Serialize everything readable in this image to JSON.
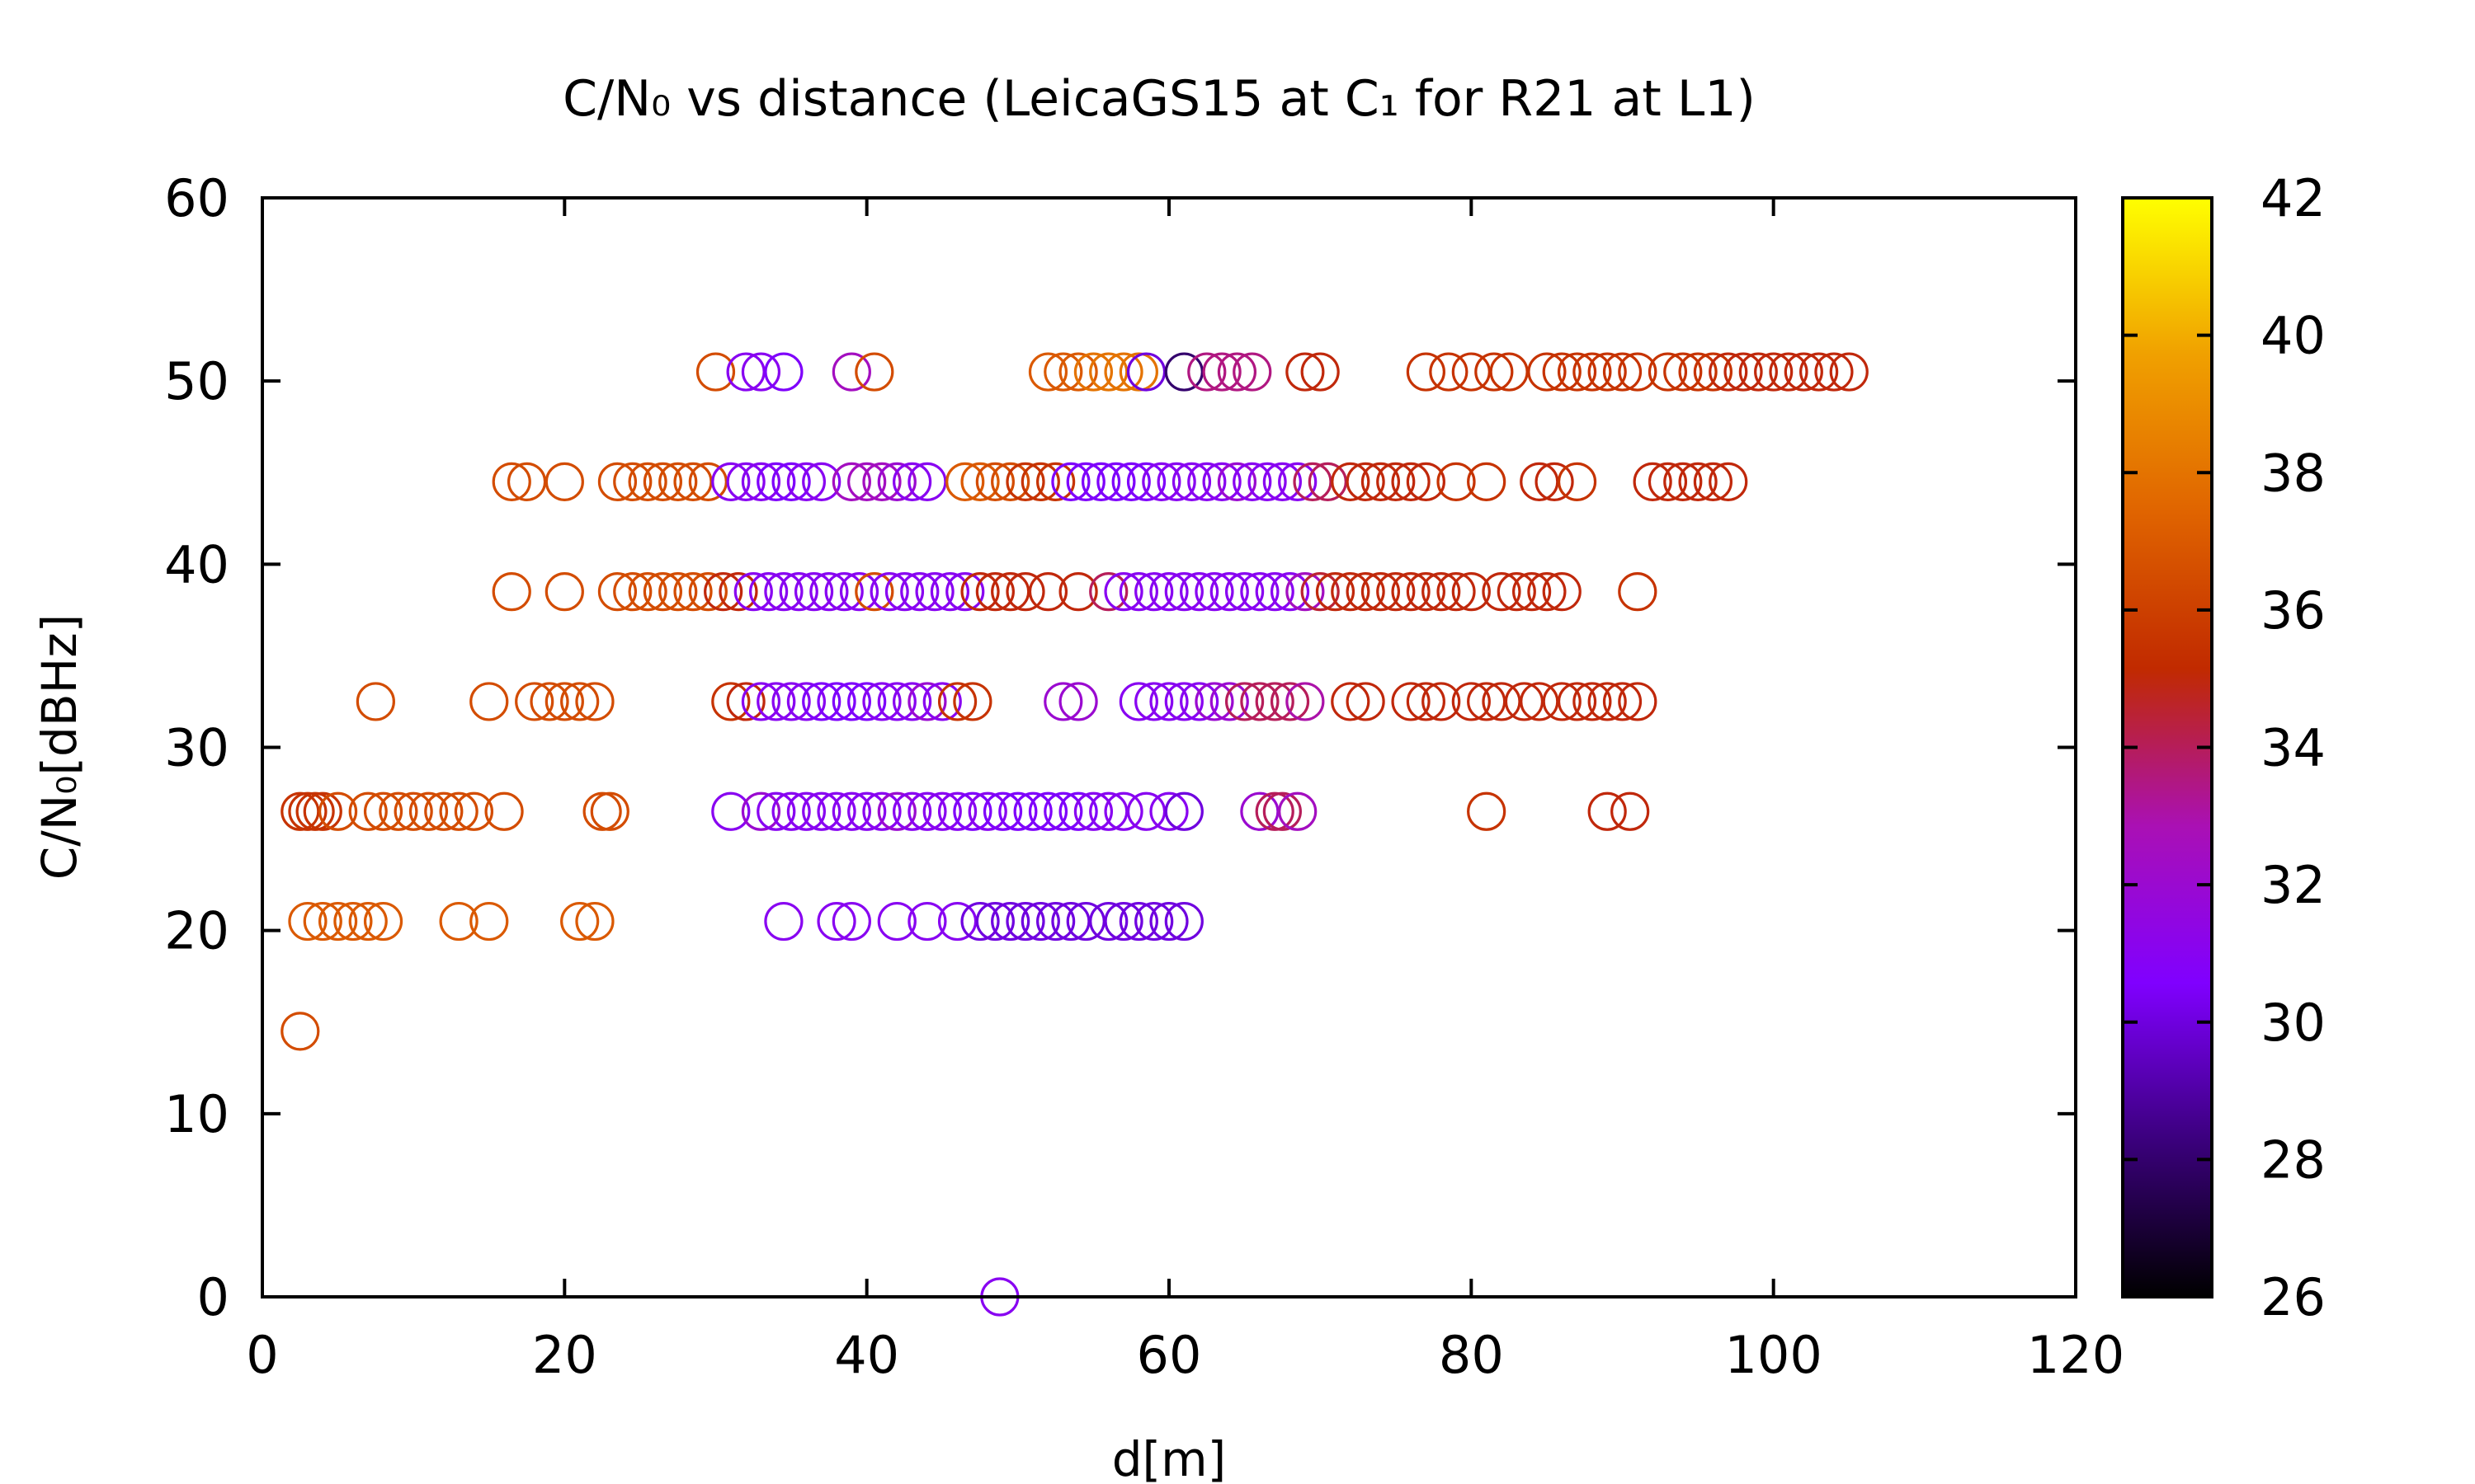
{
  "chart_data": {
    "type": "scatter",
    "title": "C/N₀ vs distance (LeicaGS15 at C₁ for R21 at L1)",
    "xlabel": "d[m]",
    "ylabel": "C/N₀[dBHz]",
    "xlim": [
      0,
      120
    ],
    "ylim": [
      0,
      60
    ],
    "xticks": [
      "0",
      "20",
      "40",
      "60",
      "80",
      "100",
      "120"
    ],
    "yticks": [
      "0",
      "10",
      "20",
      "30",
      "40",
      "50",
      "60"
    ],
    "grid": false,
    "colorbar": {
      "range": [
        26,
        42
      ],
      "ticks": [
        "26",
        "28",
        "30",
        "32",
        "34",
        "36",
        "38",
        "40",
        "42"
      ],
      "palette": [
        "#000000",
        "#3b007d",
        "#8000ff",
        "#aa10b4",
        "#c12a00",
        "#e06400",
        "#f0a000",
        "#ffff00"
      ]
    },
    "points": [
      [
        2.5,
        14.5,
        36.5
      ],
      [
        48.8,
        0,
        31.0
      ],
      [
        3.0,
        20.5,
        37.0
      ],
      [
        4.0,
        20.5,
        37.0
      ],
      [
        5.0,
        20.5,
        37.0
      ],
      [
        6.0,
        20.5,
        37.0
      ],
      [
        7.0,
        20.5,
        37.0
      ],
      [
        8.0,
        20.5,
        37.0
      ],
      [
        13.0,
        20.5,
        37.0
      ],
      [
        15.0,
        20.5,
        37.0
      ],
      [
        21.0,
        20.5,
        37.0
      ],
      [
        22.0,
        20.5,
        37.0
      ],
      [
        34.5,
        20.5,
        31.0
      ],
      [
        38.0,
        20.5,
        31.0
      ],
      [
        39.0,
        20.5,
        31.0
      ],
      [
        42.0,
        20.5,
        31.0
      ],
      [
        44.0,
        20.5,
        31.0
      ],
      [
        46.0,
        20.5,
        31.0
      ],
      [
        47.5,
        20.5,
        30.0
      ],
      [
        48.5,
        20.5,
        30.0
      ],
      [
        49.5,
        20.5,
        30.0
      ],
      [
        50.5,
        20.5,
        30.0
      ],
      [
        51.5,
        20.5,
        30.0
      ],
      [
        52.5,
        20.5,
        30.0
      ],
      [
        53.5,
        20.5,
        30.0
      ],
      [
        54.5,
        20.5,
        30.0
      ],
      [
        56.0,
        20.5,
        30.0
      ],
      [
        57.0,
        20.5,
        30.0
      ],
      [
        58.0,
        20.5,
        30.0
      ],
      [
        59.0,
        20.5,
        30.0
      ],
      [
        60.0,
        20.5,
        30.0
      ],
      [
        61.0,
        20.5,
        30.0
      ],
      [
        2.5,
        26.5,
        35.5
      ],
      [
        3.0,
        26.5,
        35.5
      ],
      [
        3.5,
        26.5,
        35.5
      ],
      [
        4.0,
        26.5,
        35.5
      ],
      [
        5.0,
        26.5,
        36.5
      ],
      [
        7.0,
        26.5,
        36.5
      ],
      [
        8.0,
        26.5,
        36.5
      ],
      [
        9.0,
        26.5,
        36.5
      ],
      [
        10.0,
        26.5,
        36.5
      ],
      [
        11.0,
        26.5,
        36.5
      ],
      [
        12.0,
        26.5,
        36.5
      ],
      [
        13.0,
        26.5,
        36.5
      ],
      [
        14.0,
        26.5,
        36.5
      ],
      [
        16.0,
        26.5,
        36.5
      ],
      [
        22.5,
        26.5,
        36.5
      ],
      [
        23.0,
        26.5,
        36.5
      ],
      [
        31.0,
        26.5,
        31.0
      ],
      [
        33.0,
        26.5,
        32.0
      ],
      [
        34.0,
        26.5,
        31.0
      ],
      [
        35.0,
        26.5,
        31.0
      ],
      [
        36.0,
        26.5,
        31.0
      ],
      [
        37.0,
        26.5,
        31.0
      ],
      [
        38.0,
        26.5,
        31.0
      ],
      [
        39.0,
        26.5,
        31.0
      ],
      [
        40.0,
        26.5,
        31.0
      ],
      [
        41.0,
        26.5,
        31.0
      ],
      [
        42.0,
        26.5,
        32.0
      ],
      [
        43.0,
        26.5,
        31.0
      ],
      [
        44.0,
        26.5,
        31.0
      ],
      [
        45.0,
        26.5,
        31.0
      ],
      [
        46.0,
        26.5,
        31.0
      ],
      [
        47.0,
        26.5,
        30.5
      ],
      [
        48.0,
        26.5,
        31.0
      ],
      [
        49.0,
        26.5,
        30.5
      ],
      [
        50.0,
        26.5,
        30.5
      ],
      [
        51.0,
        26.5,
        30.5
      ],
      [
        52.0,
        26.5,
        30.5
      ],
      [
        53.0,
        26.5,
        30.5
      ],
      [
        54.0,
        26.5,
        30.5
      ],
      [
        55.0,
        26.5,
        31.0
      ],
      [
        56.0,
        26.5,
        31.0
      ],
      [
        57.0,
        26.5,
        31.0
      ],
      [
        58.5,
        26.5,
        31.0
      ],
      [
        60.0,
        26.5,
        31.0
      ],
      [
        61.0,
        26.5,
        30.0
      ],
      [
        66.0,
        26.5,
        32.0
      ],
      [
        67.0,
        26.5,
        34.0
      ],
      [
        67.5,
        26.5,
        34.0
      ],
      [
        68.5,
        26.5,
        32.5
      ],
      [
        81.0,
        26.5,
        35.5
      ],
      [
        89.0,
        26.5,
        35.0
      ],
      [
        90.5,
        26.5,
        35.0
      ],
      [
        7.5,
        32.5,
        36.5
      ],
      [
        15.0,
        32.5,
        36.5
      ],
      [
        18.0,
        32.5,
        36.5
      ],
      [
        19.0,
        32.5,
        36.5
      ],
      [
        20.0,
        32.5,
        36.5
      ],
      [
        21.0,
        32.5,
        36.5
      ],
      [
        22.0,
        32.5,
        36.5
      ],
      [
        31.0,
        32.5,
        35.5
      ],
      [
        32.0,
        32.5,
        35.0
      ],
      [
        33.0,
        32.5,
        31.0
      ],
      [
        34.0,
        32.5,
        31.0
      ],
      [
        35.0,
        32.5,
        31.0
      ],
      [
        36.0,
        32.5,
        31.0
      ],
      [
        37.0,
        32.5,
        30.5
      ],
      [
        38.0,
        32.5,
        30.5
      ],
      [
        39.0,
        32.5,
        30.5
      ],
      [
        40.0,
        32.5,
        30.5
      ],
      [
        41.0,
        32.5,
        31.0
      ],
      [
        42.0,
        32.5,
        31.0
      ],
      [
        43.0,
        32.5,
        31.0
      ],
      [
        44.0,
        32.5,
        32.0
      ],
      [
        45.0,
        32.5,
        31.0
      ],
      [
        46.0,
        32.5,
        35.5
      ],
      [
        47.0,
        32.5,
        35.5
      ],
      [
        53.0,
        32.5,
        32.0
      ],
      [
        54.0,
        32.5,
        32.0
      ],
      [
        58.0,
        32.5,
        31.0
      ],
      [
        59.0,
        32.5,
        31.0
      ],
      [
        60.0,
        32.5,
        31.0
      ],
      [
        61.0,
        32.5,
        31.0
      ],
      [
        62.0,
        32.5,
        31.0
      ],
      [
        63.0,
        32.5,
        32.0
      ],
      [
        64.0,
        32.5,
        32.0
      ],
      [
        65.0,
        32.5,
        34.0
      ],
      [
        66.0,
        32.5,
        34.0
      ],
      [
        67.0,
        32.5,
        34.0
      ],
      [
        68.0,
        32.5,
        34.0
      ],
      [
        69.0,
        32.5,
        33.0
      ],
      [
        72.0,
        32.5,
        35.0
      ],
      [
        73.0,
        32.5,
        35.0
      ],
      [
        76.0,
        32.5,
        35.0
      ],
      [
        77.0,
        32.5,
        35.0
      ],
      [
        78.0,
        32.5,
        35.0
      ],
      [
        80.0,
        32.5,
        35.0
      ],
      [
        81.0,
        32.5,
        35.0
      ],
      [
        82.0,
        32.5,
        35.0
      ],
      [
        83.5,
        32.5,
        35.0
      ],
      [
        84.5,
        32.5,
        35.0
      ],
      [
        86.0,
        32.5,
        35.0
      ],
      [
        87.0,
        32.5,
        35.0
      ],
      [
        88.0,
        32.5,
        35.0
      ],
      [
        89.0,
        32.5,
        35.0
      ],
      [
        90.0,
        32.5,
        35.0
      ],
      [
        91.0,
        32.5,
        35.0
      ],
      [
        16.5,
        38.5,
        36.5
      ],
      [
        20.0,
        38.5,
        36.5
      ],
      [
        23.5,
        38.5,
        36.5
      ],
      [
        24.5,
        38.5,
        36.5
      ],
      [
        25.5,
        38.5,
        36.5
      ],
      [
        26.5,
        38.5,
        36.5
      ],
      [
        27.5,
        38.5,
        36.5
      ],
      [
        28.5,
        38.5,
        36.5
      ],
      [
        29.5,
        38.5,
        36.5
      ],
      [
        30.5,
        38.5,
        35.0
      ],
      [
        31.5,
        38.5,
        35.0
      ],
      [
        32.5,
        38.5,
        31.0
      ],
      [
        33.5,
        38.5,
        31.0
      ],
      [
        34.5,
        38.5,
        31.0
      ],
      [
        35.5,
        38.5,
        31.0
      ],
      [
        36.5,
        38.5,
        31.0
      ],
      [
        37.5,
        38.5,
        31.0
      ],
      [
        38.5,
        38.5,
        31.0
      ],
      [
        39.5,
        38.5,
        31.0
      ],
      [
        40.5,
        38.5,
        36.5
      ],
      [
        41.5,
        38.5,
        31.0
      ],
      [
        42.5,
        38.5,
        31.0
      ],
      [
        43.5,
        38.5,
        31.0
      ],
      [
        44.5,
        38.5,
        31.0
      ],
      [
        45.5,
        38.5,
        31.0
      ],
      [
        46.5,
        38.5,
        31.0
      ],
      [
        47.5,
        38.5,
        35.0
      ],
      [
        48.5,
        38.5,
        35.0
      ],
      [
        49.5,
        38.5,
        35.0
      ],
      [
        50.5,
        38.5,
        35.0
      ],
      [
        52.0,
        38.5,
        35.0
      ],
      [
        54.0,
        38.5,
        35.0
      ],
      [
        56.0,
        38.5,
        34.0
      ],
      [
        57.0,
        38.5,
        31.0
      ],
      [
        58.0,
        38.5,
        31.0
      ],
      [
        59.0,
        38.5,
        31.0
      ],
      [
        60.0,
        38.5,
        31.0
      ],
      [
        61.0,
        38.5,
        31.0
      ],
      [
        62.0,
        38.5,
        31.0
      ],
      [
        63.0,
        38.5,
        31.0
      ],
      [
        64.0,
        38.5,
        31.0
      ],
      [
        65.0,
        38.5,
        31.0
      ],
      [
        66.0,
        38.5,
        31.0
      ],
      [
        67.0,
        38.5,
        31.0
      ],
      [
        68.0,
        38.5,
        31.0
      ],
      [
        69.0,
        38.5,
        32.5
      ],
      [
        70.0,
        38.5,
        34.5
      ],
      [
        71.0,
        38.5,
        35.0
      ],
      [
        72.0,
        38.5,
        35.0
      ],
      [
        73.0,
        38.5,
        35.0
      ],
      [
        74.0,
        38.5,
        35.0
      ],
      [
        75.0,
        38.5,
        35.0
      ],
      [
        76.0,
        38.5,
        35.0
      ],
      [
        77.0,
        38.5,
        35.0
      ],
      [
        78.0,
        38.5,
        35.0
      ],
      [
        79.0,
        38.5,
        35.0
      ],
      [
        80.0,
        38.5,
        35.0
      ],
      [
        82.0,
        38.5,
        35.0
      ],
      [
        83.0,
        38.5,
        35.0
      ],
      [
        84.0,
        38.5,
        35.0
      ],
      [
        85.0,
        38.5,
        35.0
      ],
      [
        86.0,
        38.5,
        35.0
      ],
      [
        91.0,
        38.5,
        35.5
      ],
      [
        16.5,
        44.5,
        36.5
      ],
      [
        17.5,
        44.5,
        36.5
      ],
      [
        20.0,
        44.5,
        36.5
      ],
      [
        23.5,
        44.5,
        36.5
      ],
      [
        24.5,
        44.5,
        36.5
      ],
      [
        25.5,
        44.5,
        36.5
      ],
      [
        26.5,
        44.5,
        36.5
      ],
      [
        27.5,
        44.5,
        36.5
      ],
      [
        28.5,
        44.5,
        36.5
      ],
      [
        29.5,
        44.5,
        36.5
      ],
      [
        31.0,
        44.5,
        31.0
      ],
      [
        32.0,
        44.5,
        31.0
      ],
      [
        33.0,
        44.5,
        31.0
      ],
      [
        34.0,
        44.5,
        30.5
      ],
      [
        35.0,
        44.5,
        30.5
      ],
      [
        36.0,
        44.5,
        31.0
      ],
      [
        37.0,
        44.5,
        31.0
      ],
      [
        39.0,
        44.5,
        32.5
      ],
      [
        40.0,
        44.5,
        32.5
      ],
      [
        41.0,
        44.5,
        32.5
      ],
      [
        42.0,
        44.5,
        32.0
      ],
      [
        43.0,
        44.5,
        31.0
      ],
      [
        44.0,
        44.5,
        31.0
      ],
      [
        46.5,
        44.5,
        37.0
      ],
      [
        47.5,
        44.5,
        37.0
      ],
      [
        48.5,
        44.5,
        36.5
      ],
      [
        49.5,
        44.5,
        36.5
      ],
      [
        50.5,
        44.5,
        35.5
      ],
      [
        51.5,
        44.5,
        35.5
      ],
      [
        52.5,
        44.5,
        35.5
      ],
      [
        53.5,
        44.5,
        30.5
      ],
      [
        54.5,
        44.5,
        30.5
      ],
      [
        55.5,
        44.5,
        30.5
      ],
      [
        56.5,
        44.5,
        30.5
      ],
      [
        57.5,
        44.5,
        30.5
      ],
      [
        58.5,
        44.5,
        30.5
      ],
      [
        59.5,
        44.5,
        31.0
      ],
      [
        60.5,
        44.5,
        31.0
      ],
      [
        61.5,
        44.5,
        31.0
      ],
      [
        62.5,
        44.5,
        31.0
      ],
      [
        63.5,
        44.5,
        31.0
      ],
      [
        64.5,
        44.5,
        32.0
      ],
      [
        65.5,
        44.5,
        31.0
      ],
      [
        66.5,
        44.5,
        31.0
      ],
      [
        67.5,
        44.5,
        31.0
      ],
      [
        68.5,
        44.5,
        31.0
      ],
      [
        69.5,
        44.5,
        34.0
      ],
      [
        70.5,
        44.5,
        34.0
      ],
      [
        72.0,
        44.5,
        35.0
      ],
      [
        73.0,
        44.5,
        35.0
      ],
      [
        74.0,
        44.5,
        35.0
      ],
      [
        75.0,
        44.5,
        35.0
      ],
      [
        76.0,
        44.5,
        35.0
      ],
      [
        77.0,
        44.5,
        35.0
      ],
      [
        79.0,
        44.5,
        35.5
      ],
      [
        81.0,
        44.5,
        35.5
      ],
      [
        84.5,
        44.5,
        35.0
      ],
      [
        85.5,
        44.5,
        35.0
      ],
      [
        87.0,
        44.5,
        35.5
      ],
      [
        92.0,
        44.5,
        35.0
      ],
      [
        93.0,
        44.5,
        35.0
      ],
      [
        94.0,
        44.5,
        35.0
      ],
      [
        95.0,
        44.5,
        35.0
      ],
      [
        96.0,
        44.5,
        35.0
      ],
      [
        97.0,
        44.5,
        35.0
      ],
      [
        30.0,
        50.5,
        36.5
      ],
      [
        32.0,
        50.5,
        31.0
      ],
      [
        33.0,
        50.5,
        31.0
      ],
      [
        34.5,
        50.5,
        30.5
      ],
      [
        39.0,
        50.5,
        32.5
      ],
      [
        40.5,
        50.5,
        36.5
      ],
      [
        52.0,
        50.5,
        37.0
      ],
      [
        53.0,
        50.5,
        37.0
      ],
      [
        54.0,
        50.5,
        37.0
      ],
      [
        55.0,
        50.5,
        38.0
      ],
      [
        56.0,
        50.5,
        38.0
      ],
      [
        57.0,
        50.5,
        38.0
      ],
      [
        58.0,
        50.5,
        38.0
      ],
      [
        58.5,
        50.5,
        30.0
      ],
      [
        61.0,
        50.5,
        28.0
      ],
      [
        62.5,
        50.5,
        33.5
      ],
      [
        63.5,
        50.5,
        33.5
      ],
      [
        64.5,
        50.5,
        33.5
      ],
      [
        65.5,
        50.5,
        33.5
      ],
      [
        69.0,
        50.5,
        35.0
      ],
      [
        70.0,
        50.5,
        35.0
      ],
      [
        77.0,
        50.5,
        35.5
      ],
      [
        78.5,
        50.5,
        35.5
      ],
      [
        80.0,
        50.5,
        35.5
      ],
      [
        81.5,
        50.5,
        35.5
      ],
      [
        82.5,
        50.5,
        35.5
      ],
      [
        85.0,
        50.5,
        35.5
      ],
      [
        86.0,
        50.5,
        35.5
      ],
      [
        87.0,
        50.5,
        35.5
      ],
      [
        88.0,
        50.5,
        35.5
      ],
      [
        89.0,
        50.5,
        35.5
      ],
      [
        90.0,
        50.5,
        35.5
      ],
      [
        91.0,
        50.5,
        35.5
      ],
      [
        93.0,
        50.5,
        35.5
      ],
      [
        94.0,
        50.5,
        35.5
      ],
      [
        95.0,
        50.5,
        35.5
      ],
      [
        96.0,
        50.5,
        35.5
      ],
      [
        97.0,
        50.5,
        35.0
      ],
      [
        98.0,
        50.5,
        35.0
      ],
      [
        99.0,
        50.5,
        35.0
      ],
      [
        100.0,
        50.5,
        35.0
      ],
      [
        101.0,
        50.5,
        35.0
      ],
      [
        102.0,
        50.5,
        35.0
      ],
      [
        103.0,
        50.5,
        35.0
      ],
      [
        104.0,
        50.5,
        35.0
      ],
      [
        105.0,
        50.5,
        35.0
      ]
    ]
  }
}
